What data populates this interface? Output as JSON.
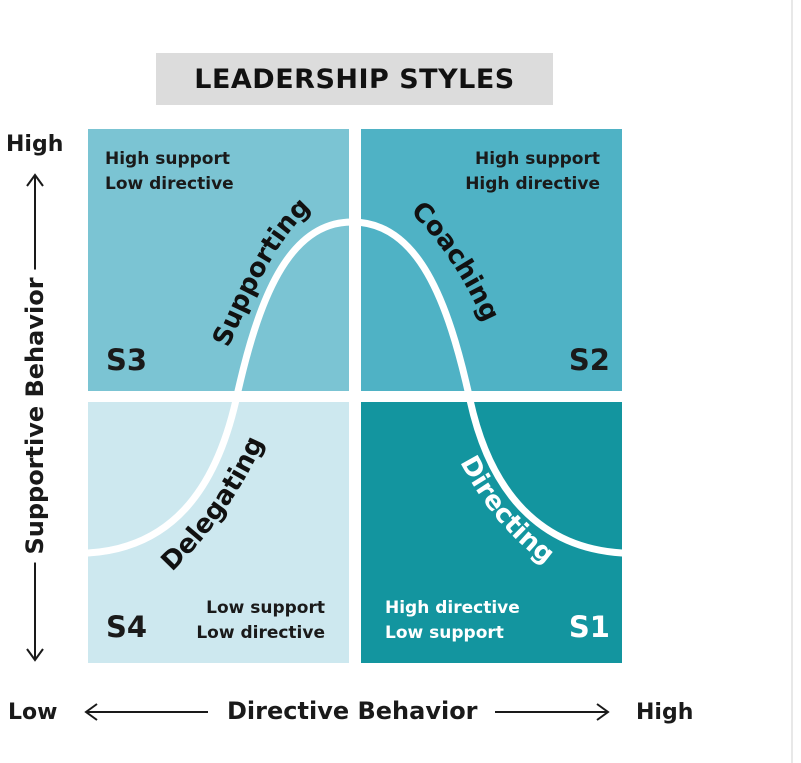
{
  "title": "LEADERSHIP STYLES",
  "axes": {
    "y_title": "Supportive Behavior",
    "y_high": "High",
    "x_title": "Directive Behavior",
    "x_low": "Low",
    "x_high": "High"
  },
  "quadrants": {
    "s3": {
      "code": "S3",
      "style": "Supporting",
      "line1": "High support",
      "line2": "Low directive",
      "color": "#7bc4d3"
    },
    "s2": {
      "code": "S2",
      "style": "Coaching",
      "line1": "High support",
      "line2": "High directive",
      "color": "#4fb2c5"
    },
    "s4": {
      "code": "S4",
      "style": "Delegating",
      "line1": "Low support",
      "line2": "Low directive",
      "color": "#cde8ef"
    },
    "s1": {
      "code": "S1",
      "style": "Directing",
      "line1": "High directive",
      "line2": "Low support",
      "color": "#13959f"
    }
  }
}
